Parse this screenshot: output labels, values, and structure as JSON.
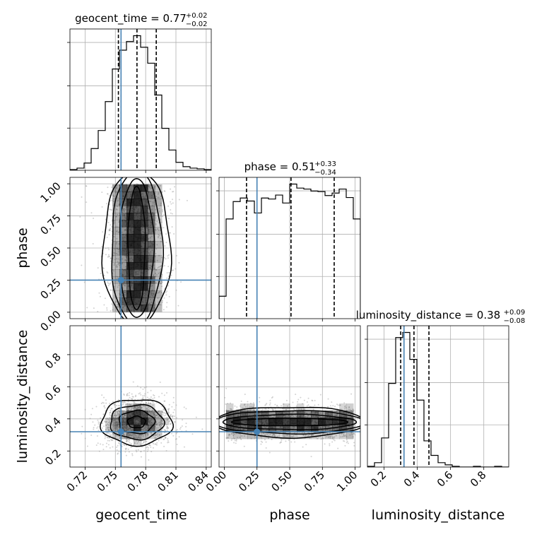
{
  "chart_data": {
    "type": "corner",
    "parameters": [
      "geocent_time",
      "phase",
      "luminosity_distance"
    ],
    "truths": {
      "geocent_time": 0.7556,
      "phase": 0.25,
      "luminosity_distance": 0.32
    },
    "colors": {
      "line": "#000000",
      "truth": "#4682b4",
      "grid": "#b0b0b0",
      "points": "#9e9e9e",
      "hist2d": "#000000"
    },
    "grid": true,
    "diagonal": [
      {
        "parameter": "geocent_time",
        "title_prefix": "geocent_time = 0.77",
        "title_sup": "+0.02",
        "title_sub": "−0.02",
        "xlim": [
          0.705,
          0.845
        ],
        "quantiles": [
          0.753,
          0.7714,
          0.7905
        ],
        "bins": [
          0.705,
          0.712,
          0.719,
          0.726,
          0.733,
          0.74,
          0.747,
          0.754,
          0.761,
          0.768,
          0.775,
          0.782,
          0.789,
          0.796,
          0.803,
          0.81,
          0.817,
          0.824,
          0.831,
          0.838,
          0.845
        ],
        "counts": [
          1,
          3,
          10,
          30,
          55,
          95,
          140,
          166,
          178,
          186,
          170,
          148,
          104,
          58,
          28,
          11,
          5,
          3,
          2,
          1
        ]
      },
      {
        "parameter": "phase",
        "title_prefix": "phase = 0.51",
        "title_sup": "+0.33",
        "title_sub": "−0.34",
        "xlim": [
          -0.04,
          1.04
        ],
        "quantiles": [
          0.17,
          0.51,
          0.84
        ],
        "bins": [
          -0.04,
          0.014,
          0.068,
          0.122,
          0.176,
          0.23,
          0.284,
          0.338,
          0.392,
          0.446,
          0.5,
          0.554,
          0.608,
          0.662,
          0.716,
          0.77,
          0.824,
          0.878,
          0.932,
          0.986,
          1.04
        ],
        "counts": [
          45,
          200,
          235,
          242,
          236,
          212,
          242,
          240,
          248,
          232,
          270,
          262,
          260,
          256,
          255,
          247,
          252,
          260,
          243,
          200
        ]
      },
      {
        "parameter": "luminosity_distance",
        "title_prefix": "luminosity_distance = 0.38",
        "title_sup": "+0.09",
        "title_sub": "−0.08",
        "xlim": [
          0.1,
          0.95
        ],
        "quantiles": [
          0.3,
          0.38,
          0.47
        ],
        "bins": [
          0.1,
          0.1425,
          0.185,
          0.2275,
          0.27,
          0.3125,
          0.355,
          0.3975,
          0.44,
          0.4825,
          0.525,
          0.5675,
          0.61,
          0.6525,
          0.695,
          0.7375,
          0.78,
          0.8225,
          0.865,
          0.9075,
          0.95
        ],
        "counts": [
          1,
          6,
          40,
          115,
          178,
          185,
          148,
          92,
          36,
          16,
          6,
          3,
          1,
          0,
          0,
          1,
          0,
          0,
          1,
          0
        ]
      }
    ],
    "off_diagonal": [
      {
        "x": "geocent_time",
        "y": "phase",
        "xlim": [
          0.705,
          0.845
        ],
        "ylim": [
          -0.05,
          1.05
        ],
        "center": [
          0.771,
          0.51
        ],
        "spread": [
          0.014,
          0.3
        ]
      },
      {
        "x": "geocent_time",
        "y": "luminosity_distance",
        "xlim": [
          0.705,
          0.845
        ],
        "ylim": [
          0.1,
          0.98
        ],
        "center": [
          0.771,
          0.38
        ],
        "spread": [
          0.016,
          0.065
        ]
      },
      {
        "x": "phase",
        "y": "luminosity_distance",
        "xlim": [
          -0.04,
          1.04
        ],
        "ylim": [
          0.1,
          0.98
        ],
        "center": [
          0.51,
          0.38
        ],
        "spread": [
          0.3,
          0.05
        ]
      }
    ],
    "axis_labels": {
      "x": [
        "geocent_time",
        "phase",
        "luminosity_distance"
      ],
      "y": [
        "phase",
        "luminosity_distance"
      ]
    },
    "ticks": {
      "geocent_time": {
        "values": [
          0.72,
          0.75,
          0.78,
          0.81,
          0.84
        ],
        "labels": [
          "0.72",
          "0.75",
          "0.78",
          "0.81",
          "0.84"
        ]
      },
      "phase": {
        "values": [
          0.0,
          0.25,
          0.5,
          0.75,
          1.0
        ],
        "labels": [
          "0.00",
          "0.25",
          "0.50",
          "0.75",
          "1.00"
        ]
      },
      "luminosity_distance_x": {
        "values": [
          0.2,
          0.4,
          0.6,
          0.8
        ],
        "labels": [
          "0.2",
          "0.4",
          "0.6",
          "0.8"
        ]
      },
      "luminosity_distance_y": {
        "values": [
          0.2,
          0.4,
          0.6,
          0.8
        ],
        "labels": [
          "0.2",
          "0.4",
          "0.6",
          "0.8"
        ]
      }
    }
  }
}
